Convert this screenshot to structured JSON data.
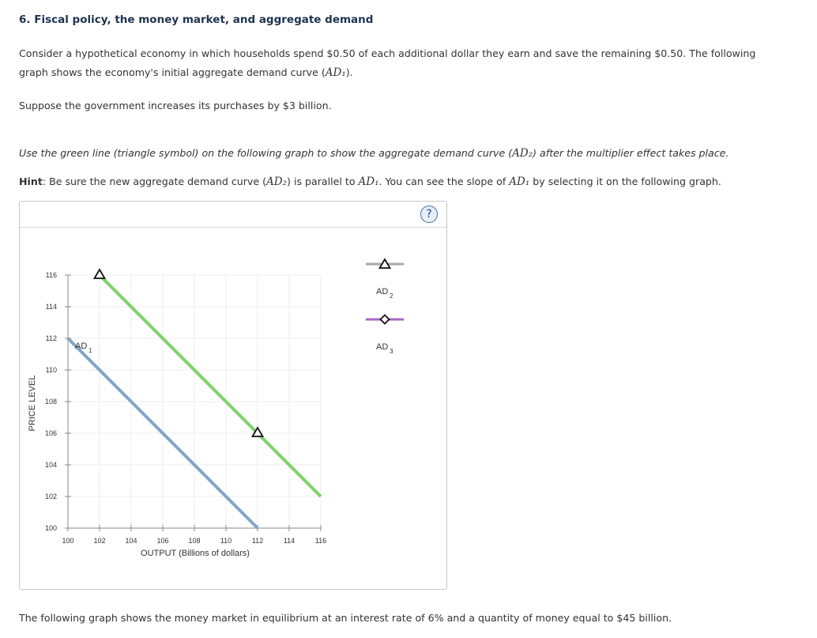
{
  "question": {
    "title": "6. Fiscal policy, the money market, and aggregate demand",
    "p1_a": "Consider a hypothetical economy in which households spend $0.50 of each additional dollar they earn and save the remaining $0.50. The following graph shows the economy's initial aggregate demand curve (",
    "p1_math": "AD₁",
    "p1_b": ").",
    "p2": "Suppose the government increases its purchases by $3 billion.",
    "p3_a": "Use the green line (triangle symbol) on the following graph to show the aggregate demand curve (",
    "p3_math": "AD₂",
    "p3_b": ") after the multiplier effect takes place.",
    "hint_label": "Hint",
    "p4_a": ": Be sure the new aggregate demand curve (",
    "p4_math1": "AD₂",
    "p4_b": ") is parallel to ",
    "p4_math2": "AD₁",
    "p4_c": ". You can see the slope of ",
    "p4_math3": "AD₁",
    "p4_d": " by selecting it on the following graph.",
    "p5": "The following graph shows the money market in equilibrium at an interest rate of 6% and a quantity of money equal to $45 billion."
  },
  "graph": {
    "help_label": "?"
  },
  "chart_data": {
    "type": "line",
    "xlabel": "OUTPUT (Billions of dollars)",
    "ylabel": "PRICE LEVEL",
    "xlim": [
      100,
      116
    ],
    "ylim": [
      100,
      116
    ],
    "xticks": [
      100,
      102,
      104,
      106,
      108,
      110,
      112,
      114,
      116
    ],
    "yticks": [
      100,
      102,
      104,
      106,
      108,
      110,
      112,
      114,
      116
    ],
    "grid": true,
    "series": [
      {
        "name": "AD",
        "name_sub": "1",
        "color": "#7fa7c9",
        "marker": "none",
        "points": [
          [
            100,
            112
          ],
          [
            112,
            100
          ]
        ]
      },
      {
        "name": "",
        "color": "#7ed36a",
        "marker": "triangle",
        "points": [
          [
            102,
            116
          ],
          [
            112,
            106
          ]
        ],
        "extends_to": [
          116,
          102
        ]
      }
    ],
    "palette": [
      {
        "name": "AD",
        "name_sub": "2",
        "color": "#a8a8a8",
        "marker": "triangle"
      },
      {
        "name": "AD",
        "name_sub": "3",
        "color": "#a766c6",
        "marker": "diamond"
      }
    ]
  }
}
